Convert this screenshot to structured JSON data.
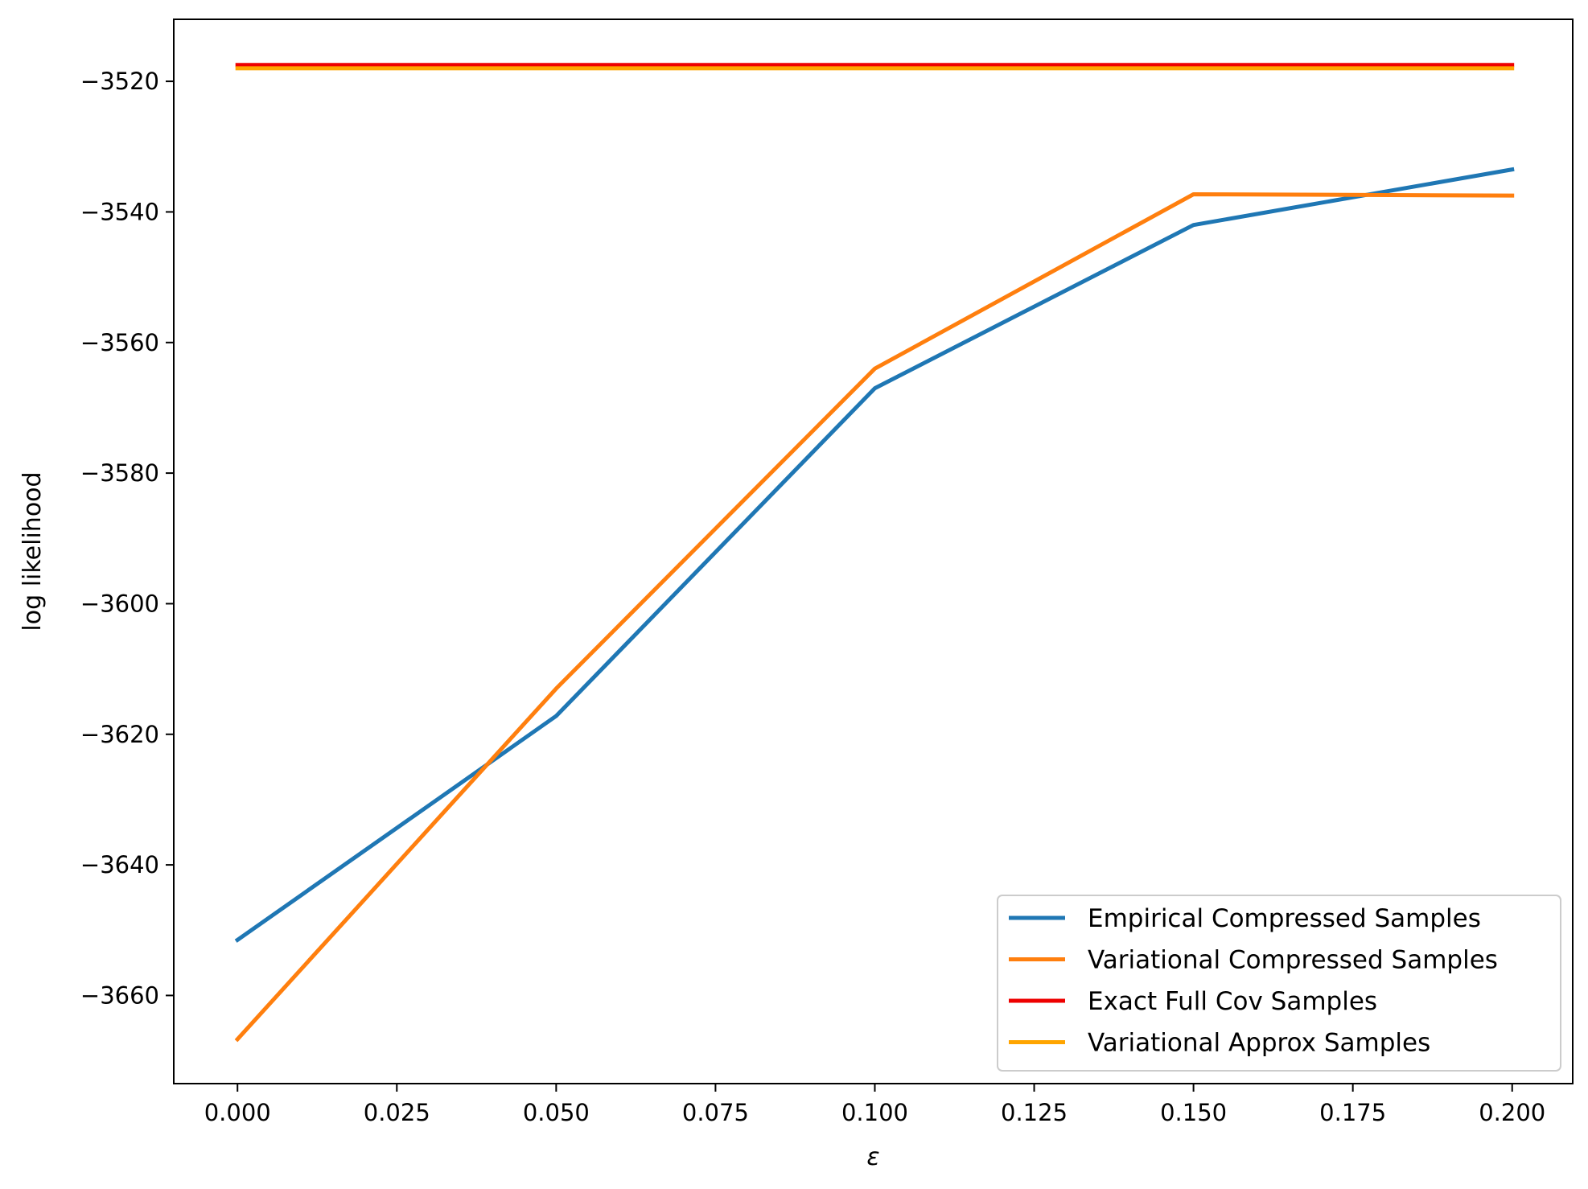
{
  "chart_data": {
    "type": "line",
    "title": "",
    "xlabel": "ε",
    "ylabel": "log likelihood",
    "xlim": [
      -0.01,
      0.2095
    ],
    "ylim": [
      -3673.5,
      -3510.5
    ],
    "x_ticks": [
      "0.000",
      "0.025",
      "0.050",
      "0.075",
      "0.100",
      "0.125",
      "0.150",
      "0.175",
      "0.200"
    ],
    "x_tick_values": [
      0.0,
      0.025,
      0.05,
      0.075,
      0.1,
      0.125,
      0.15,
      0.175,
      0.2
    ],
    "y_ticks": [
      "−3520",
      "−3540",
      "−3560",
      "−3580",
      "−3600",
      "−3620",
      "−3640",
      "−3660"
    ],
    "y_tick_values": [
      -3520,
      -3540,
      -3560,
      -3580,
      -3600,
      -3620,
      -3640,
      -3660
    ],
    "grid": false,
    "legend_position": "lower-right",
    "series": [
      {
        "name": "Empirical Compressed Samples",
        "color": "#1f77b4",
        "x": [
          0.0,
          0.05,
          0.1,
          0.15,
          0.2
        ],
        "values": [
          -3651.5,
          -3617.2,
          -3567.0,
          -3542.0,
          -3533.5
        ]
      },
      {
        "name": "Variational Compressed Samples",
        "color": "#ff7f0e",
        "x": [
          0.0,
          0.05,
          0.1,
          0.15,
          0.2
        ],
        "values": [
          -3666.7,
          -3613.0,
          -3564.0,
          -3537.3,
          -3537.5
        ]
      },
      {
        "name": "Exact Full Cov Samples",
        "color": "#ee0000",
        "x": [
          0.0,
          0.05,
          0.1,
          0.15,
          0.2
        ],
        "values": [
          -3517.5,
          -3517.5,
          -3517.5,
          -3517.5,
          -3517.5
        ]
      },
      {
        "name": "Variational Approx Samples",
        "color": "#ffa500",
        "x": [
          0.0,
          0.05,
          0.1,
          0.15,
          0.2
        ],
        "values": [
          -3518.0,
          -3518.0,
          -3518.0,
          -3518.0,
          -3518.0
        ]
      }
    ]
  }
}
